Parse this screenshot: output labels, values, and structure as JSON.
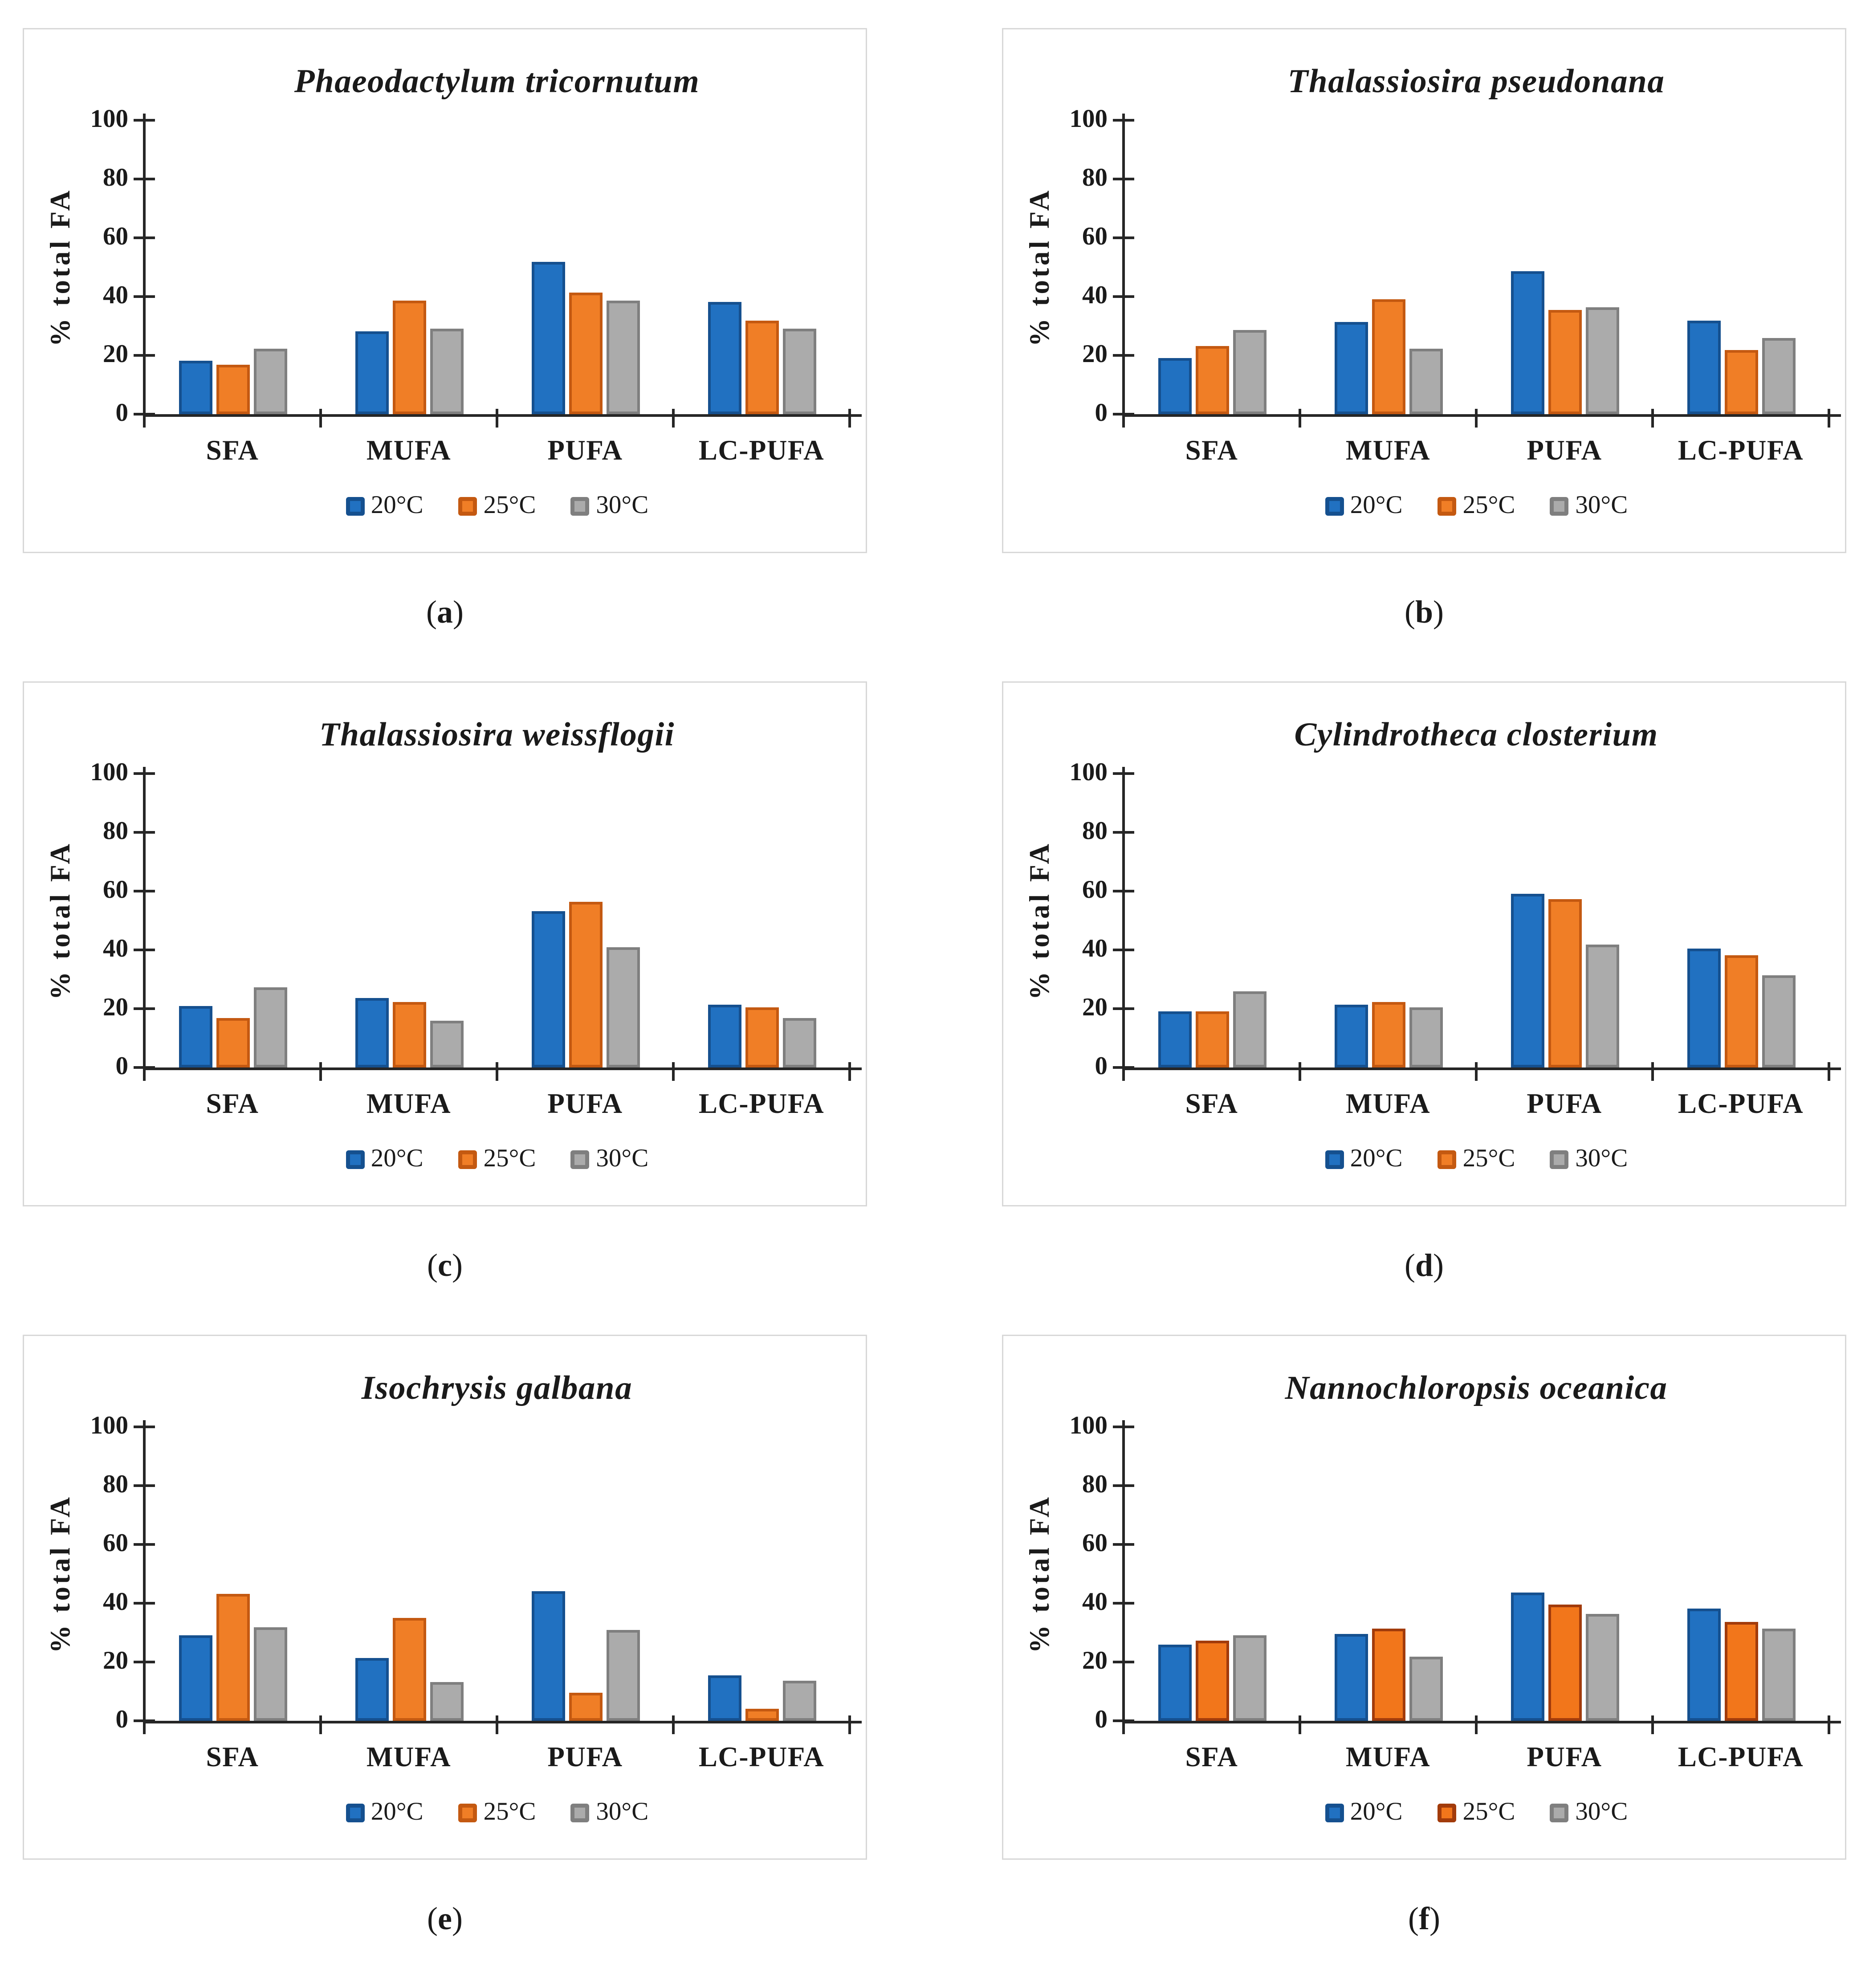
{
  "figure": {
    "ylabel": "% total FA",
    "categories": [
      "SFA",
      "MUFA",
      "PUFA",
      "LC-PUFA"
    ],
    "legend": [
      "20°C",
      "25°C",
      "30°C"
    ],
    "accent_colors": {
      "blue": "#2171C1",
      "orange": "#F07E26",
      "gray": "#ABABAB"
    }
  },
  "chart_data": [
    {
      "id": "a",
      "type": "bar",
      "title": "Phaeodactylum tricornutum",
      "caption": "a",
      "xlabel": "",
      "ylabel": "% total FA",
      "ylim": [
        0,
        100
      ],
      "yticks": [
        0,
        20,
        40,
        60,
        80,
        100
      ],
      "gridlines": false,
      "legend_position": "bottom",
      "categories": [
        "SFA",
        "MUFA",
        "PUFA",
        "LC-PUFA"
      ],
      "series": [
        {
          "name": "20°C",
          "color": "#2171C1",
          "border": "#15508F",
          "values": [
            18,
            28,
            52,
            38
          ]
        },
        {
          "name": "25°C",
          "color": "#F07E26",
          "border": "#C45911",
          "values": [
            17,
            38.5,
            41.5,
            32
          ]
        },
        {
          "name": "30°C",
          "color": "#ABABAB",
          "border": "#7F7F7F",
          "values": [
            22.5,
            29,
            38.5,
            29
          ]
        }
      ]
    },
    {
      "id": "b",
      "type": "bar",
      "title": "Thalassiosira pseudonana",
      "caption": "b",
      "xlabel": "",
      "ylabel": "% total FA",
      "ylim": [
        0,
        100
      ],
      "yticks": [
        0,
        20,
        40,
        60,
        80,
        100
      ],
      "gridlines": false,
      "legend_position": "bottom",
      "categories": [
        "SFA",
        "MUFA",
        "PUFA",
        "LC-PUFA"
      ],
      "series": [
        {
          "name": "20°C",
          "color": "#2171C1",
          "border": "#15508F",
          "values": [
            19,
            31.5,
            48.5,
            32
          ]
        },
        {
          "name": "25°C",
          "color": "#F07E26",
          "border": "#C45911",
          "values": [
            23,
            39,
            35.5,
            22
          ]
        },
        {
          "name": "30°C",
          "color": "#ABABAB",
          "border": "#7F7F7F",
          "values": [
            28.5,
            22.5,
            36.5,
            26
          ]
        }
      ]
    },
    {
      "id": "c",
      "type": "bar",
      "title": "Thalassiosira weissflogii",
      "caption": "c",
      "xlabel": "",
      "ylabel": "% total FA",
      "ylim": [
        0,
        100
      ],
      "yticks": [
        0,
        20,
        40,
        60,
        80,
        100
      ],
      "gridlines": false,
      "legend_position": "bottom",
      "categories": [
        "SFA",
        "MUFA",
        "PUFA",
        "LC-PUFA"
      ],
      "series": [
        {
          "name": "20°C",
          "color": "#2171C1",
          "border": "#15508F",
          "values": [
            21,
            23.5,
            53,
            21.5
          ]
        },
        {
          "name": "25°C",
          "color": "#F07E26",
          "border": "#C45911",
          "values": [
            17,
            22.5,
            56.5,
            20.5
          ]
        },
        {
          "name": "30°C",
          "color": "#ABABAB",
          "border": "#7F7F7F",
          "values": [
            27.5,
            16,
            41,
            17
          ]
        }
      ]
    },
    {
      "id": "d",
      "type": "bar",
      "title": "Cylindrotheca closterium",
      "caption": "d",
      "xlabel": "",
      "ylabel": "% total FA",
      "ylim": [
        0,
        100
      ],
      "yticks": [
        0,
        20,
        40,
        60,
        80,
        100
      ],
      "gridlines": false,
      "legend_position": "bottom",
      "categories": [
        "SFA",
        "MUFA",
        "PUFA",
        "LC-PUFA"
      ],
      "series": [
        {
          "name": "20°C",
          "color": "#2171C1",
          "border": "#15508F",
          "values": [
            19,
            21.5,
            59,
            40.5
          ]
        },
        {
          "name": "25°C",
          "color": "#F07E26",
          "border": "#C45911",
          "values": [
            19,
            22.5,
            57.5,
            38
          ]
        },
        {
          "name": "30°C",
          "color": "#ABABAB",
          "border": "#7F7F7F",
          "values": [
            26,
            20.5,
            42,
            31.5
          ]
        }
      ]
    },
    {
      "id": "e",
      "type": "bar",
      "title": "Isochrysis galbana",
      "caption": "e",
      "xlabel": "",
      "ylabel": "% total FA",
      "ylim": [
        0,
        100
      ],
      "yticks": [
        0,
        20,
        40,
        60,
        80,
        100
      ],
      "gridlines": false,
      "legend_position": "bottom",
      "categories": [
        "SFA",
        "MUFA",
        "PUFA",
        "LC-PUFA"
      ],
      "series": [
        {
          "name": "20°C",
          "color": "#2171C1",
          "border": "#15508F",
          "values": [
            29,
            21.5,
            44,
            15.5
          ]
        },
        {
          "name": "25°C",
          "color": "#F07E26",
          "border": "#C45911",
          "values": [
            43,
            35,
            9.5,
            4
          ]
        },
        {
          "name": "30°C",
          "color": "#ABABAB",
          "border": "#7F7F7F",
          "values": [
            32,
            13,
            31,
            13.5
          ]
        }
      ]
    },
    {
      "id": "f",
      "type": "bar",
      "title": "Nannochloropsis oceanica",
      "caption": "f",
      "xlabel": "",
      "ylabel": "% total FA",
      "ylim": [
        0,
        100
      ],
      "yticks": [
        0,
        20,
        40,
        60,
        80,
        100
      ],
      "gridlines": false,
      "legend_position": "bottom",
      "categories": [
        "SFA",
        "MUFA",
        "PUFA",
        "LC-PUFA"
      ],
      "series": [
        {
          "name": "20°C",
          "color": "#2171C1",
          "border": "#15508F",
          "values": [
            26,
            29.5,
            43.5,
            38
          ]
        },
        {
          "name": "25°C",
          "color": "#F2761B",
          "border": "#A23B0B",
          "values": [
            27.5,
            31.5,
            39.5,
            33.5
          ]
        },
        {
          "name": "30°C",
          "color": "#ABABAB",
          "border": "#7F7F7F",
          "values": [
            29,
            22,
            36.5,
            31.5
          ]
        }
      ]
    }
  ]
}
